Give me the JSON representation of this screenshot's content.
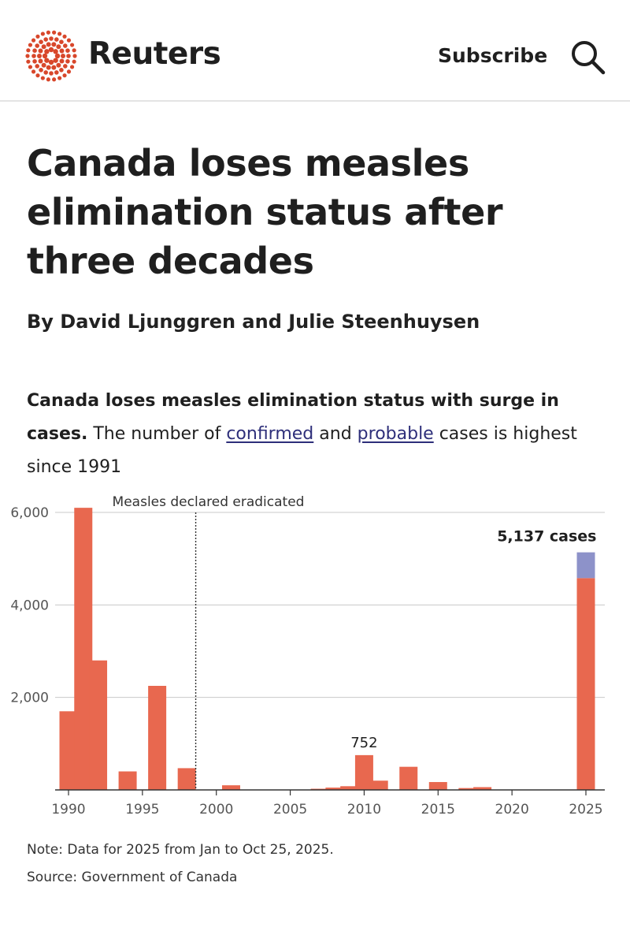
{
  "header": {
    "brand": "Reuters",
    "subscribe_label": "Subscribe",
    "brand_color": "#d8472b"
  },
  "article": {
    "headline": "Canada loses measles elimination status after three decades",
    "byline": "By David Ljunggren and Julie Steenhuysen"
  },
  "chart_intro": {
    "bold": "Canada loses measles elimination status with surge in cases.",
    "text_1": " The number of ",
    "link_confirmed": "confirmed",
    "text_2": " and ",
    "link_probable": "probable",
    "text_3": " cases is highest since 1991"
  },
  "chart_data": {
    "type": "bar",
    "stacked": true,
    "x": [
      1990,
      1991,
      1992,
      1993,
      1994,
      1995,
      1996,
      1997,
      1998,
      1999,
      2000,
      2001,
      2002,
      2003,
      2004,
      2005,
      2006,
      2007,
      2008,
      2009,
      2010,
      2011,
      2012,
      2013,
      2014,
      2015,
      2016,
      2017,
      2018,
      2019,
      2020,
      2021,
      2022,
      2023,
      2024,
      2025
    ],
    "series": [
      {
        "name": "confirmed",
        "color": "#e8684f",
        "values": [
          1700,
          6100,
          2800,
          0,
          400,
          0,
          2250,
          0,
          470,
          0,
          0,
          100,
          0,
          0,
          0,
          0,
          0,
          25,
          50,
          80,
          752,
          200,
          0,
          500,
          0,
          170,
          0,
          40,
          60,
          0,
          0,
          0,
          0,
          0,
          0,
          4580
        ]
      },
      {
        "name": "probable",
        "color": "#8d92c9",
        "values": [
          0,
          0,
          0,
          0,
          0,
          0,
          0,
          0,
          0,
          0,
          0,
          0,
          0,
          0,
          0,
          0,
          0,
          0,
          0,
          0,
          0,
          0,
          0,
          0,
          0,
          0,
          0,
          0,
          0,
          0,
          0,
          0,
          0,
          0,
          0,
          557
        ]
      }
    ],
    "ylim": [
      0,
      6000
    ],
    "yticks": [
      2000,
      4000,
      6000
    ],
    "ytick_labels": [
      "2,000",
      "4,000",
      "6,000"
    ],
    "xticks": [
      1990,
      1995,
      2000,
      2005,
      2010,
      2015,
      2020,
      2025
    ],
    "xtick_labels": [
      "1990",
      "1995",
      "2000",
      "2005",
      "2010",
      "2015",
      "2020",
      "2025"
    ],
    "grid": true,
    "annotations": [
      {
        "x": 1998,
        "text": "Measles declared eradicated",
        "type": "vline"
      },
      {
        "x": 2010,
        "text": "752",
        "type": "bar-label"
      },
      {
        "x": 2025,
        "text": "5,137 cases",
        "type": "bar-label"
      }
    ]
  },
  "footnotes": {
    "note": "Note: Data for 2025 from Jan to Oct 25, 2025.",
    "source": "Source: Government of Canada"
  }
}
